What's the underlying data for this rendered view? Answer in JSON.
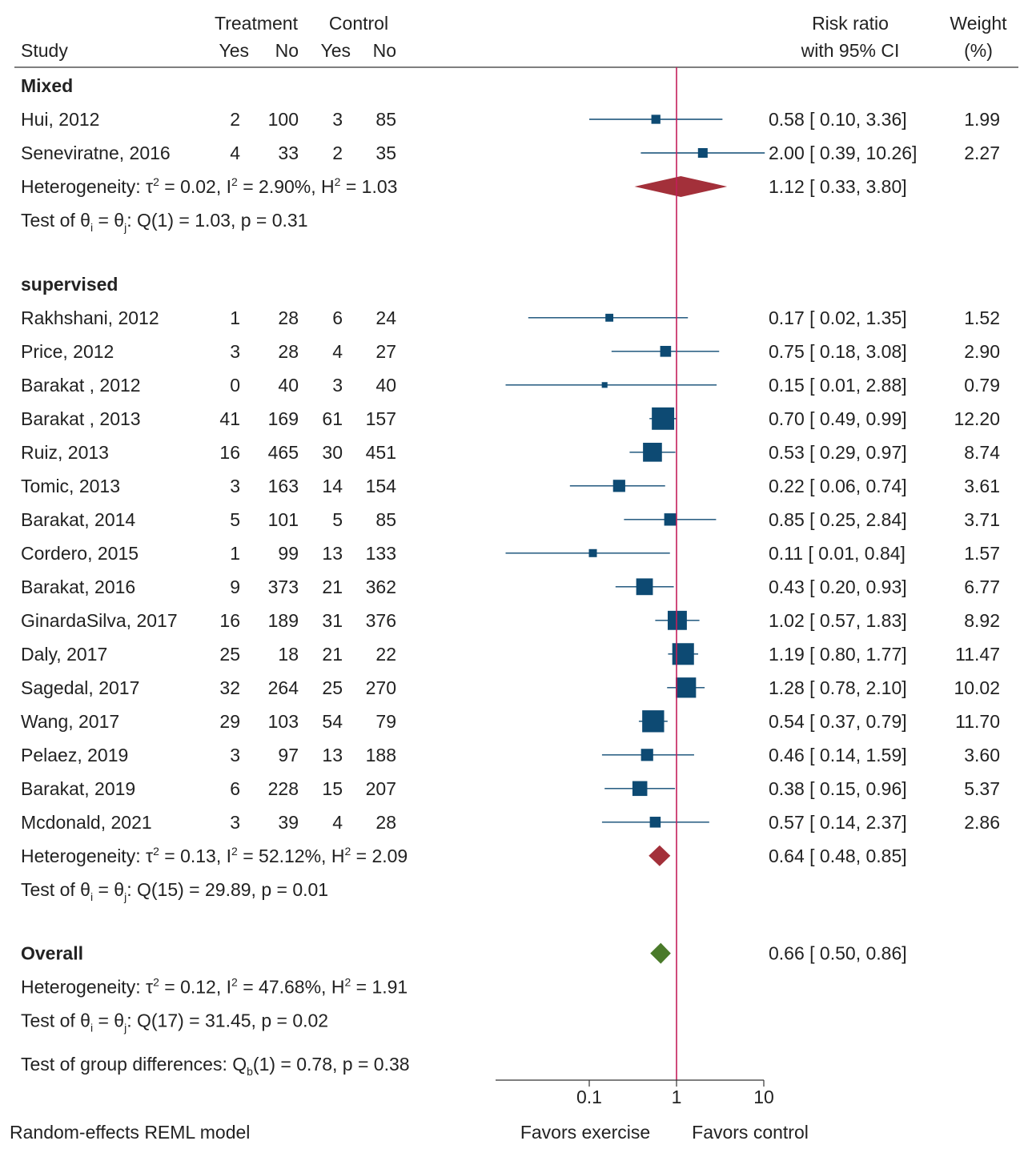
{
  "chart_data": {
    "type": "forest",
    "title": "",
    "model_note": "Random-effects REML model",
    "headers": {
      "study": "Study",
      "treatment": "Treatment",
      "control": "Control",
      "yes": "Yes",
      "no": "No",
      "rr_line1": "Risk ratio",
      "rr_line2": "with 95% CI",
      "weight_line1": "Weight",
      "weight_line2": "(%)"
    },
    "x_axis": {
      "scale": "log",
      "range": [
        0.011,
        10
      ],
      "ticks": [
        0.1,
        1,
        10
      ],
      "tick_labels": [
        "0.1",
        "1",
        "10"
      ],
      "reference_line": 1,
      "favors_left": "Favors exercise",
      "favors_right": "Favors control"
    },
    "colors": {
      "study_marker": "#0d4a73",
      "subgroup_diamond": "#a3303a",
      "overall_diamond": "#4a7a2a",
      "reference_line": "#c41e5a"
    },
    "groups": [
      {
        "name": "Mixed",
        "studies": [
          {
            "study": "Hui, 2012",
            "t_yes": "2",
            "t_no": "100",
            "c_yes": "3",
            "c_no": "85",
            "rr": 0.58,
            "lo": 0.1,
            "hi": 3.36,
            "ci_text": "0.58 [ 0.10,    3.36]",
            "weight": 1.99,
            "weight_text": "1.99"
          },
          {
            "study": "Seneviratne, 2016",
            "t_yes": "4",
            "t_no": "33",
            "c_yes": "2",
            "c_no": "35",
            "rr": 2.0,
            "lo": 0.39,
            "hi": 10.26,
            "ci_text": "2.00 [ 0.39,  10.26]",
            "weight": 2.27,
            "weight_text": "2.27"
          }
        ],
        "pooled": {
          "rr": 1.12,
          "lo": 0.33,
          "hi": 3.8,
          "ci_text": "1.12 [ 0.33,    3.80]"
        },
        "heterogeneity": {
          "prefix": "Heterogeneity: τ",
          "tau2": "2",
          "tau2_val": " = 0.02, I",
          "i2": "2",
          "i2_val": " = 2.90%, H",
          "h2": "2",
          "h2_val": " = 1.03"
        },
        "test": {
          "prefix": "Test of θ",
          "sub_i": "i",
          "mid": " = θ",
          "sub_j": "j",
          "rest": ": Q(1) = 1.03, p = 0.31"
        }
      },
      {
        "name": "supervised",
        "studies": [
          {
            "study": "Rakhshani, 2012",
            "t_yes": "1",
            "t_no": "28",
            "c_yes": "6",
            "c_no": "24",
            "rr": 0.17,
            "lo": 0.02,
            "hi": 1.35,
            "ci_text": "0.17 [ 0.02,    1.35]",
            "weight": 1.52,
            "weight_text": "1.52"
          },
          {
            "study": "Price, 2012",
            "t_yes": "3",
            "t_no": "28",
            "c_yes": "4",
            "c_no": "27",
            "rr": 0.75,
            "lo": 0.18,
            "hi": 3.08,
            "ci_text": "0.75 [ 0.18,    3.08]",
            "weight": 2.9,
            "weight_text": "2.90"
          },
          {
            "study": "Barakat , 2012",
            "t_yes": "0",
            "t_no": "40",
            "c_yes": "3",
            "c_no": "40",
            "rr": 0.15,
            "lo": 0.01,
            "hi": 2.88,
            "ci_text": "0.15 [ 0.01,    2.88]",
            "weight": 0.79,
            "weight_text": "0.79"
          },
          {
            "study": "Barakat , 2013",
            "t_yes": "41",
            "t_no": "169",
            "c_yes": "61",
            "c_no": "157",
            "rr": 0.7,
            "lo": 0.49,
            "hi": 0.99,
            "ci_text": "0.70 [ 0.49,    0.99]",
            "weight": 12.2,
            "weight_text": "12.20"
          },
          {
            "study": "Ruiz, 2013",
            "t_yes": "16",
            "t_no": "465",
            "c_yes": "30",
            "c_no": "451",
            "rr": 0.53,
            "lo": 0.29,
            "hi": 0.97,
            "ci_text": "0.53 [ 0.29,    0.97]",
            "weight": 8.74,
            "weight_text": "8.74"
          },
          {
            "study": "Tomic, 2013",
            "t_yes": "3",
            "t_no": "163",
            "c_yes": "14",
            "c_no": "154",
            "rr": 0.22,
            "lo": 0.06,
            "hi": 0.74,
            "ci_text": "0.22 [ 0.06,    0.74]",
            "weight": 3.61,
            "weight_text": "3.61"
          },
          {
            "study": "Barakat, 2014",
            "t_yes": "5",
            "t_no": "101",
            "c_yes": "5",
            "c_no": "85",
            "rr": 0.85,
            "lo": 0.25,
            "hi": 2.84,
            "ci_text": "0.85 [ 0.25,    2.84]",
            "weight": 3.71,
            "weight_text": "3.71"
          },
          {
            "study": "Cordero, 2015",
            "t_yes": "1",
            "t_no": "99",
            "c_yes": "13",
            "c_no": "133",
            "rr": 0.11,
            "lo": 0.01,
            "hi": 0.84,
            "ci_text": "0.11 [ 0.01,    0.84]",
            "weight": 1.57,
            "weight_text": "1.57"
          },
          {
            "study": "Barakat, 2016",
            "t_yes": "9",
            "t_no": "373",
            "c_yes": "21",
            "c_no": "362",
            "rr": 0.43,
            "lo": 0.2,
            "hi": 0.93,
            "ci_text": "0.43 [ 0.20,    0.93]",
            "weight": 6.77,
            "weight_text": "6.77"
          },
          {
            "study": "GinardaSilva, 2017",
            "t_yes": "16",
            "t_no": "189",
            "c_yes": "31",
            "c_no": "376",
            "rr": 1.02,
            "lo": 0.57,
            "hi": 1.83,
            "ci_text": "1.02 [ 0.57,    1.83]",
            "weight": 8.92,
            "weight_text": "8.92"
          },
          {
            "study": "Daly, 2017",
            "t_yes": "25",
            "t_no": "18",
            "c_yes": "21",
            "c_no": "22",
            "rr": 1.19,
            "lo": 0.8,
            "hi": 1.77,
            "ci_text": "1.19 [ 0.80,    1.77]",
            "weight": 11.47,
            "weight_text": "11.47"
          },
          {
            "study": "Sagedal, 2017",
            "t_yes": "32",
            "t_no": "264",
            "c_yes": "25",
            "c_no": "270",
            "rr": 1.28,
            "lo": 0.78,
            "hi": 2.1,
            "ci_text": "1.28 [ 0.78,    2.10]",
            "weight": 10.02,
            "weight_text": "10.02"
          },
          {
            "study": "Wang, 2017",
            "t_yes": "29",
            "t_no": "103",
            "c_yes": "54",
            "c_no": "79",
            "rr": 0.54,
            "lo": 0.37,
            "hi": 0.79,
            "ci_text": "0.54 [ 0.37,    0.79]",
            "weight": 11.7,
            "weight_text": "11.70"
          },
          {
            "study": "Pelaez, 2019",
            "t_yes": "3",
            "t_no": "97",
            "c_yes": "13",
            "c_no": "188",
            "rr": 0.46,
            "lo": 0.14,
            "hi": 1.59,
            "ci_text": "0.46 [ 0.14,    1.59]",
            "weight": 3.6,
            "weight_text": "3.60"
          },
          {
            "study": "Barakat, 2019",
            "t_yes": "6",
            "t_no": "228",
            "c_yes": "15",
            "c_no": "207",
            "rr": 0.38,
            "lo": 0.15,
            "hi": 0.96,
            "ci_text": "0.38 [ 0.15,    0.96]",
            "weight": 5.37,
            "weight_text": "5.37"
          },
          {
            "study": "Mcdonald, 2021",
            "t_yes": "3",
            "t_no": "39",
            "c_yes": "4",
            "c_no": "28",
            "rr": 0.57,
            "lo": 0.14,
            "hi": 2.37,
            "ci_text": "0.57 [ 0.14,    2.37]",
            "weight": 2.86,
            "weight_text": "2.86"
          }
        ],
        "pooled": {
          "rr": 0.64,
          "lo": 0.48,
          "hi": 0.85,
          "ci_text": "0.64 [ 0.48,    0.85]"
        },
        "heterogeneity": {
          "prefix": "Heterogeneity: τ",
          "tau2": "2",
          "tau2_val": " = 0.13, I",
          "i2": "2",
          "i2_val": " = 52.12%, H",
          "h2": "2",
          "h2_val": " = 2.09"
        },
        "test": {
          "prefix": "Test of θ",
          "sub_i": "i",
          "mid": " = θ",
          "sub_j": "j",
          "rest": ": Q(15) = 29.89, p = 0.01"
        }
      }
    ],
    "overall": {
      "name": "Overall",
      "rr": 0.66,
      "lo": 0.5,
      "hi": 0.86,
      "ci_text": "0.66 [ 0.50,    0.86]",
      "heterogeneity": {
        "prefix": "Heterogeneity: τ",
        "tau2": "2",
        "tau2_val": " = 0.12, I",
        "i2": "2",
        "i2_val": " = 47.68%, H",
        "h2": "2",
        "h2_val": " = 1.91"
      },
      "test": {
        "prefix": "Test of θ",
        "sub_i": "i",
        "mid": " = θ",
        "sub_j": "j",
        "rest": ": Q(17) = 31.45, p = 0.02"
      }
    },
    "group_diff": {
      "prefix": "Test of group differences: Q",
      "sub": "b",
      "rest": "(1) = 0.78, p = 0.38"
    }
  }
}
